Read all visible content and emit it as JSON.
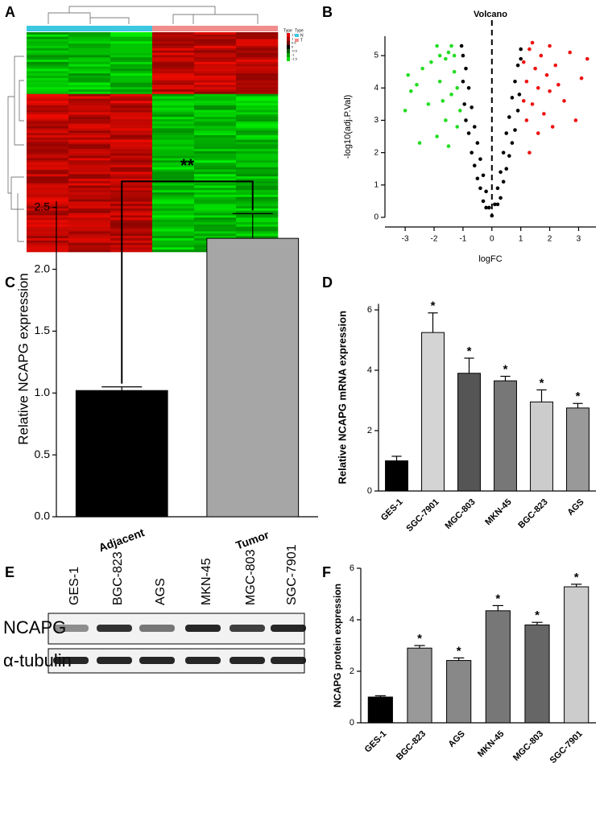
{
  "panel_labels": [
    "A",
    "B",
    "C",
    "D",
    "E",
    "F"
  ],
  "heatmap": {
    "legend_title": "Type",
    "groups": [
      "N",
      "T"
    ],
    "group_colors": [
      "#3cc8e0",
      "#f08c8c"
    ],
    "scale": [
      "1.5",
      "1",
      "0.5",
      "0",
      "-0.5",
      "-1",
      "-1.5"
    ]
  },
  "blot": {
    "lanes": [
      "GES-1",
      "BGC-823",
      "AGS",
      "MKN-45",
      "MGC-803",
      "SGC-7901"
    ],
    "rows": [
      "NCAPG",
      "α-tubulin"
    ]
  },
  "chart_data": [
    {
      "type": "scatter",
      "title": "Volcano",
      "x_label": "logFC",
      "y_label": "-log10(adj.P.Val)",
      "xlim": [
        -3.7,
        3.6
      ],
      "xticks": [
        -3,
        -2,
        -1,
        0,
        1,
        2,
        3
      ],
      "ylim": [
        0,
        5.6
      ],
      "yticks": [
        0,
        1,
        2,
        3,
        4,
        5
      ],
      "vline": 0,
      "series": [
        {
          "color": "#22dd22",
          "x": [
            -2.9,
            -2.8,
            -3.0,
            -2.5,
            -2.6,
            -2.1,
            -1.9,
            -1.8,
            -1.7,
            -1.6,
            -1.5,
            -1.4,
            -1.3,
            -1.2,
            -1.9,
            -1.6,
            -1.4,
            -2.2,
            -1.2,
            -1.8,
            -1.1,
            -2.4,
            -1.5,
            -1.3
          ],
          "values": [
            4.4,
            3.9,
            3.3,
            2.3,
            4.1,
            4.8,
            5.3,
            4.2,
            3.6,
            4.9,
            5.1,
            3.8,
            4.5,
            2.8,
            2.5,
            3.0,
            5.3,
            3.5,
            4.0,
            5.0,
            3.3,
            4.6,
            2.2,
            5.0
          ]
        },
        {
          "color": "#000000",
          "x": [
            -1.0,
            -0.9,
            -0.8,
            -0.7,
            -0.6,
            -0.5,
            -0.4,
            -0.3,
            -0.2,
            -0.1,
            0.0,
            0.1,
            0.2,
            0.3,
            0.4,
            0.5,
            0.6,
            0.7,
            0.8,
            0.9,
            1.0,
            -0.95,
            -0.8,
            -0.6,
            -0.4,
            -0.2,
            0.2,
            0.4,
            0.6,
            0.8,
            0.95,
            -1.0,
            -0.7,
            -0.5,
            0.5,
            0.7,
            -1.05,
            1.0,
            -0.3,
            0.3,
            -0.9,
            0.9
          ],
          "values": [
            5.0,
            4.6,
            4.0,
            3.4,
            2.8,
            2.3,
            1.8,
            1.3,
            0.8,
            0.3,
            0.05,
            0.4,
            0.9,
            1.4,
            2.0,
            2.6,
            3.1,
            3.7,
            4.2,
            4.7,
            4.9,
            3.5,
            2.6,
            1.6,
            0.9,
            0.3,
            0.4,
            1.1,
            1.9,
            2.7,
            3.8,
            4.2,
            2.0,
            1.2,
            1.5,
            2.3,
            5.3,
            5.2,
            0.5,
            0.6,
            3.0,
            3.3
          ]
        },
        {
          "color": "#ee1111",
          "x": [
            1.1,
            1.2,
            1.3,
            1.4,
            1.5,
            1.6,
            1.7,
            1.8,
            1.9,
            2.0,
            2.1,
            2.3,
            2.5,
            2.7,
            2.9,
            3.1,
            3.3,
            1.2,
            1.4,
            1.1,
            2.2,
            1.6,
            2.0,
            1.3
          ],
          "values": [
            4.8,
            4.2,
            5.2,
            3.5,
            4.6,
            4.0,
            5.0,
            3.2,
            4.4,
            5.3,
            2.8,
            4.1,
            3.6,
            5.1,
            3.0,
            4.3,
            4.9,
            3.0,
            5.4,
            3.6,
            4.7,
            2.6,
            3.9,
            2.0
          ]
        }
      ]
    },
    {
      "type": "bar",
      "y_label": "Relative NCAPG expression",
      "categories": [
        "Adjacent",
        "Tumor"
      ],
      "values": [
        1.02,
        2.25
      ],
      "errors": [
        0.03,
        0.2
      ],
      "colors": [
        "#000000",
        "#a6a6a6"
      ],
      "ylim": [
        0,
        2.55
      ],
      "yticks": [
        {
          "value": 0,
          "label": "0.0"
        },
        0.5,
        {
          "value": 1,
          "label": "1.0"
        },
        1.5,
        {
          "value": 2,
          "label": "2.0"
        },
        2.5
      ],
      "significance": "**"
    },
    {
      "type": "bar",
      "y_label": "Relative NCAPG mRNA expression",
      "categories": [
        "GES-1",
        "SGC-7901",
        "MGC-803",
        "MKN-45",
        "BGC-823",
        "AGS"
      ],
      "values": [
        1.0,
        5.25,
        3.9,
        3.65,
        2.95,
        2.75
      ],
      "errors": [
        0.15,
        0.65,
        0.5,
        0.15,
        0.4,
        0.15
      ],
      "colors": [
        "#000000",
        "#d4d4d4",
        "#555555",
        "#777777",
        "#cccccc",
        "#999999"
      ],
      "annotations": [
        null,
        "*",
        "*",
        "*",
        "*",
        "*"
      ],
      "ylim": [
        0,
        6.2
      ],
      "yticks": [
        0,
        2,
        4,
        6
      ]
    },
    {
      "type": "bar",
      "y_label": "NCAPG protein expression",
      "categories": [
        "GES-1",
        "BGC-823",
        "AGS",
        "MKN-45",
        "MGC-803",
        "SGC-7901"
      ],
      "values": [
        1.0,
        2.9,
        2.42,
        4.35,
        3.8,
        5.28
      ],
      "errors": [
        0.05,
        0.1,
        0.1,
        0.2,
        0.1,
        0.1
      ],
      "colors": [
        "#000000",
        "#999999",
        "#888888",
        "#777777",
        "#666666",
        "#cccccc"
      ],
      "annotations": [
        null,
        "*",
        "*",
        "*",
        "*",
        "*"
      ],
      "ylim": [
        0,
        6
      ],
      "yticks": [
        0,
        2,
        4,
        6
      ]
    }
  ]
}
